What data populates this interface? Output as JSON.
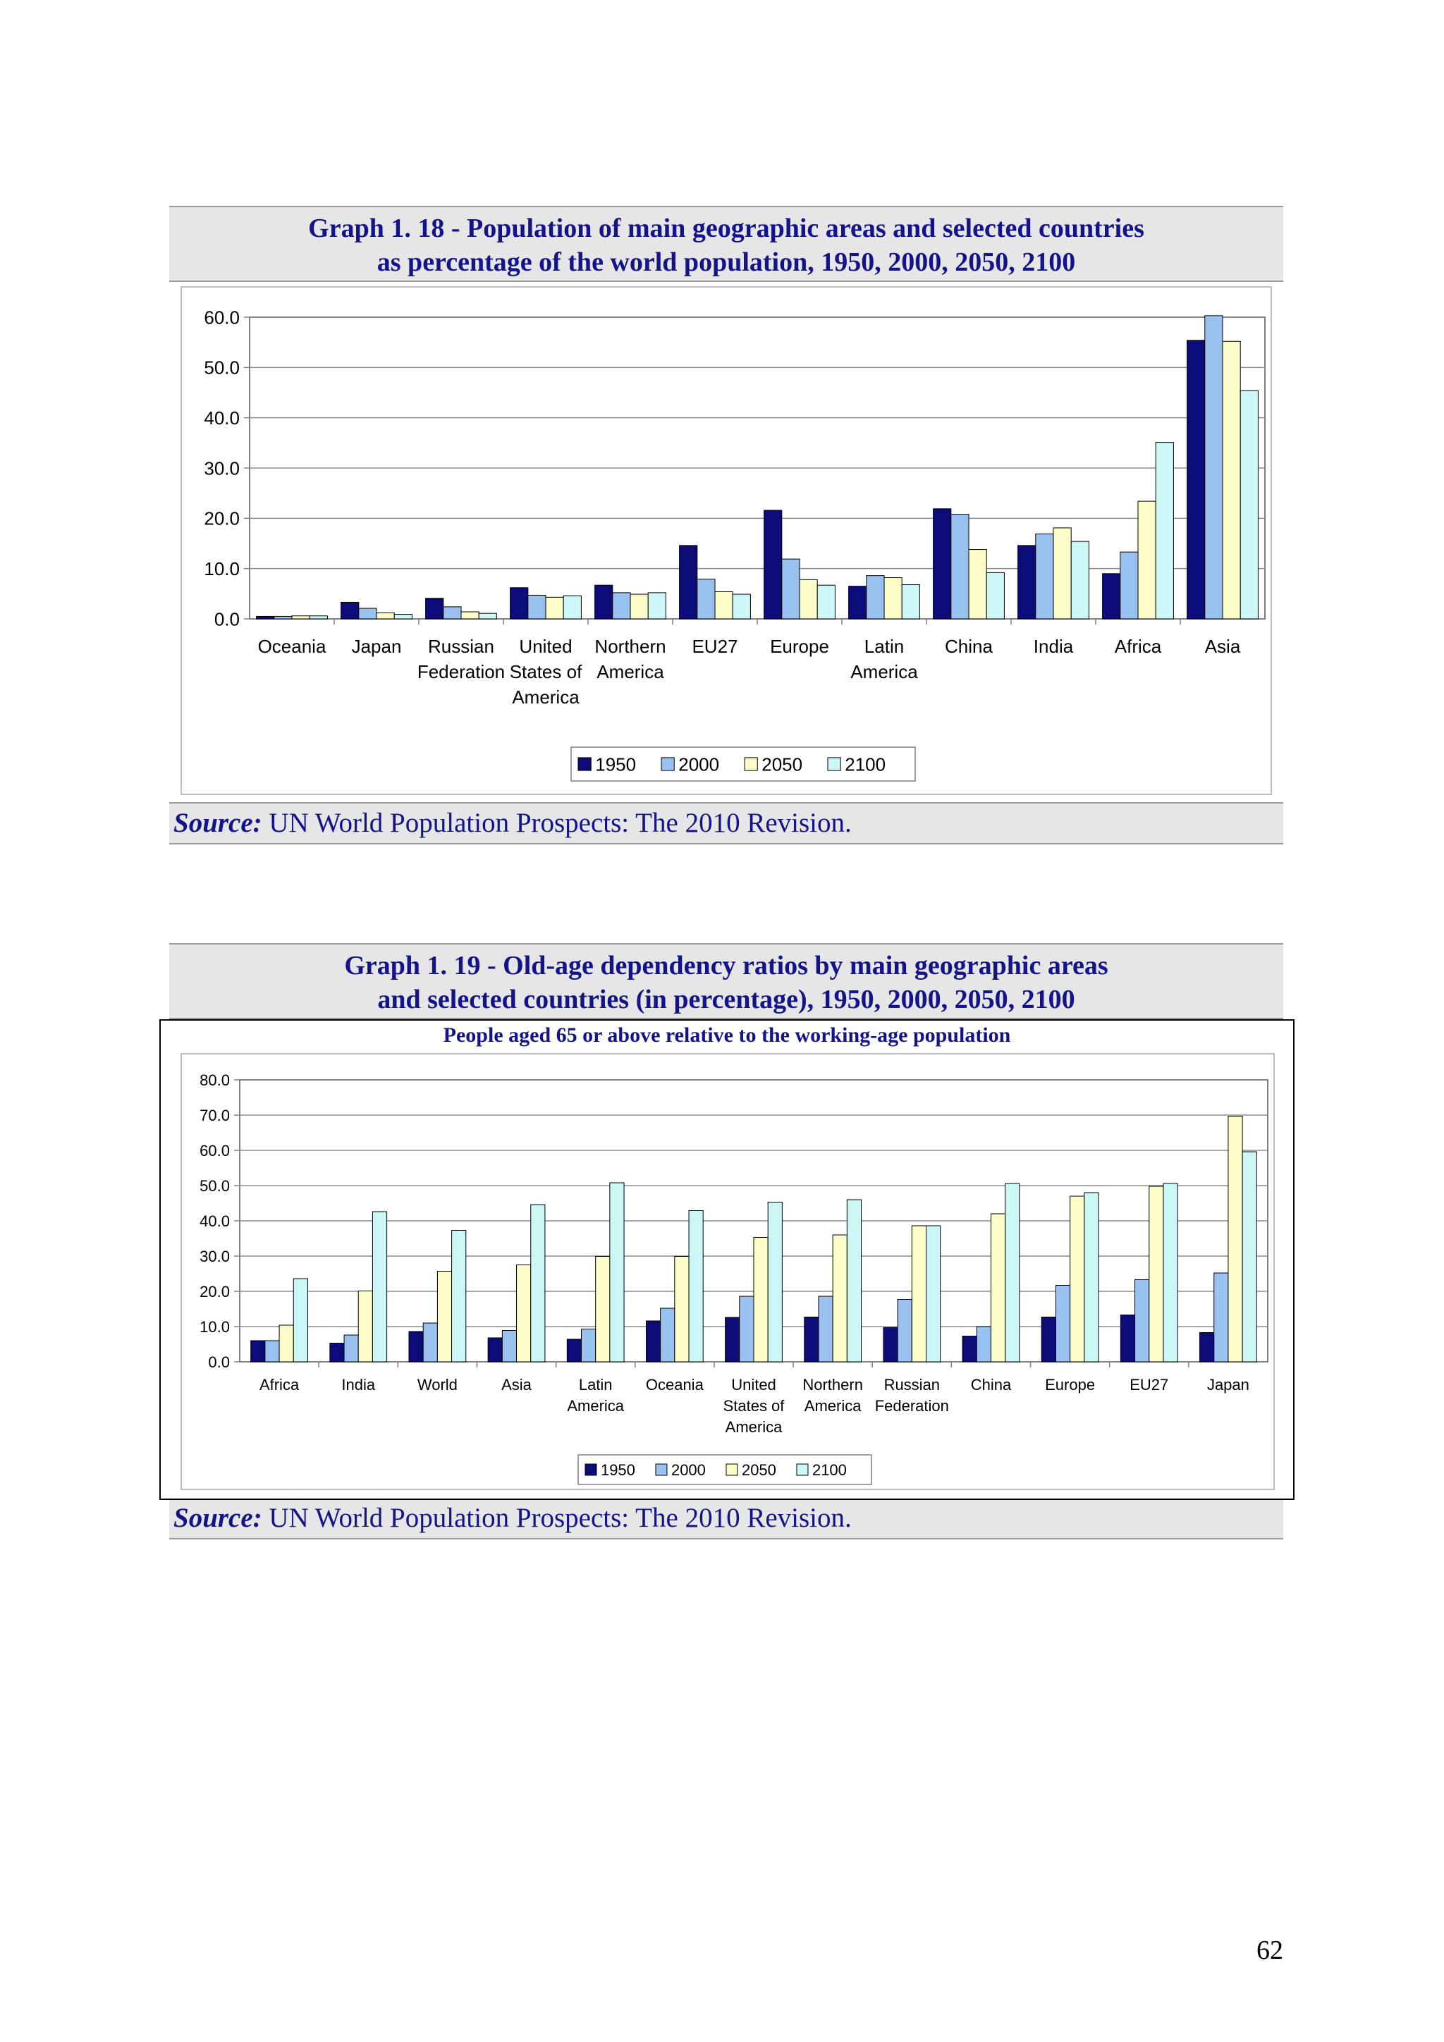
{
  "colors": {
    "1950": "#0b0b7a",
    "2000": "#99c2f0",
    "2050": "#fcfcc8",
    "2100": "#ccf7f7",
    "title": "#14148a"
  },
  "page_number": "62",
  "graph18": {
    "title_line1": "Graph 1. 18 - Population of main geographic areas and selected countries",
    "title_line2": "as percentage of the world population, 1950, 2000, 2050, 2100",
    "source_label": "Source:",
    "source_text": " UN World Population Prospects: The 2010 Revision."
  },
  "graph19": {
    "title_line1": "Graph 1. 19 - Old-age dependency ratios by main geographic areas",
    "title_line2": "and selected countries (in percentage), 1950, 2000, 2050, 2100",
    "subtitle": "People aged 65 or above relative to the working-age population",
    "source_label": "Source:",
    "source_text": " UN World Population Prospects: The 2010 Revision."
  },
  "chart_data": [
    {
      "type": "bar",
      "title": "",
      "xlabel": "",
      "ylabel": "",
      "ylim": [
        0,
        60
      ],
      "yticks": [
        "0.0",
        "10.0",
        "20.0",
        "30.0",
        "40.0",
        "50.0",
        "60.0"
      ],
      "grid": true,
      "legend_position": "bottom",
      "categories": [
        [
          "Oceania"
        ],
        [
          "Japan"
        ],
        [
          "Russian",
          "Federation"
        ],
        [
          "United",
          "States of",
          "America"
        ],
        [
          "Northern",
          "America"
        ],
        [
          "EU27"
        ],
        [
          "Europe"
        ],
        [
          "Latin",
          "America"
        ],
        [
          "China"
        ],
        [
          "India"
        ],
        [
          "Africa"
        ],
        [
          "Asia"
        ]
      ],
      "series": [
        {
          "name": "1950",
          "values": [
            0.5,
            3.3,
            4.1,
            6.2,
            6.7,
            14.6,
            21.6,
            6.5,
            21.9,
            14.6,
            9.0,
            55.4
          ]
        },
        {
          "name": "2000",
          "values": [
            0.5,
            2.1,
            2.4,
            4.7,
            5.2,
            7.9,
            11.9,
            8.6,
            20.8,
            16.9,
            13.3,
            60.3
          ]
        },
        {
          "name": "2050",
          "values": [
            0.6,
            1.2,
            1.4,
            4.3,
            4.9,
            5.4,
            7.8,
            8.2,
            13.8,
            18.1,
            23.4,
            55.2
          ]
        },
        {
          "name": "2100",
          "values": [
            0.6,
            0.9,
            1.1,
            4.6,
            5.2,
            4.9,
            6.7,
            6.8,
            9.2,
            15.4,
            35.1,
            45.4
          ]
        }
      ]
    },
    {
      "type": "bar",
      "title": "People aged 65 or above relative to the working-age population",
      "xlabel": "",
      "ylabel": "",
      "ylim": [
        0,
        80
      ],
      "yticks": [
        "0.0",
        "10.0",
        "20.0",
        "30.0",
        "40.0",
        "50.0",
        "60.0",
        "70.0",
        "80.0"
      ],
      "grid": true,
      "legend_position": "bottom",
      "categories": [
        [
          "Africa"
        ],
        [
          "India"
        ],
        [
          "World"
        ],
        [
          "Asia"
        ],
        [
          "Latin",
          "America"
        ],
        [
          "Oceania"
        ],
        [
          "United",
          "States of",
          "America"
        ],
        [
          "Northern",
          "America"
        ],
        [
          "Russian",
          "Federation"
        ],
        [
          "China"
        ],
        [
          "Europe"
        ],
        [
          "EU27"
        ],
        [
          "Japan"
        ]
      ],
      "series": [
        {
          "name": "1950",
          "values": [
            6.0,
            5.3,
            8.6,
            6.8,
            6.4,
            11.6,
            12.6,
            12.7,
            9.7,
            7.3,
            12.7,
            13.3,
            8.3
          ]
        },
        {
          "name": "2000",
          "values": [
            6.0,
            7.6,
            11.0,
            8.9,
            9.3,
            15.2,
            18.6,
            18.6,
            17.7,
            10.0,
            21.7,
            23.3,
            25.2
          ]
        },
        {
          "name": "2050",
          "values": [
            10.4,
            20.1,
            25.7,
            27.5,
            29.9,
            29.9,
            35.3,
            36.0,
            38.6,
            42.0,
            47.0,
            49.8,
            69.7
          ]
        },
        {
          "name": "2100",
          "values": [
            23.6,
            42.6,
            37.3,
            44.6,
            50.8,
            42.9,
            45.3,
            46.0,
            38.6,
            50.6,
            48.0,
            50.6,
            59.6
          ]
        }
      ]
    }
  ]
}
